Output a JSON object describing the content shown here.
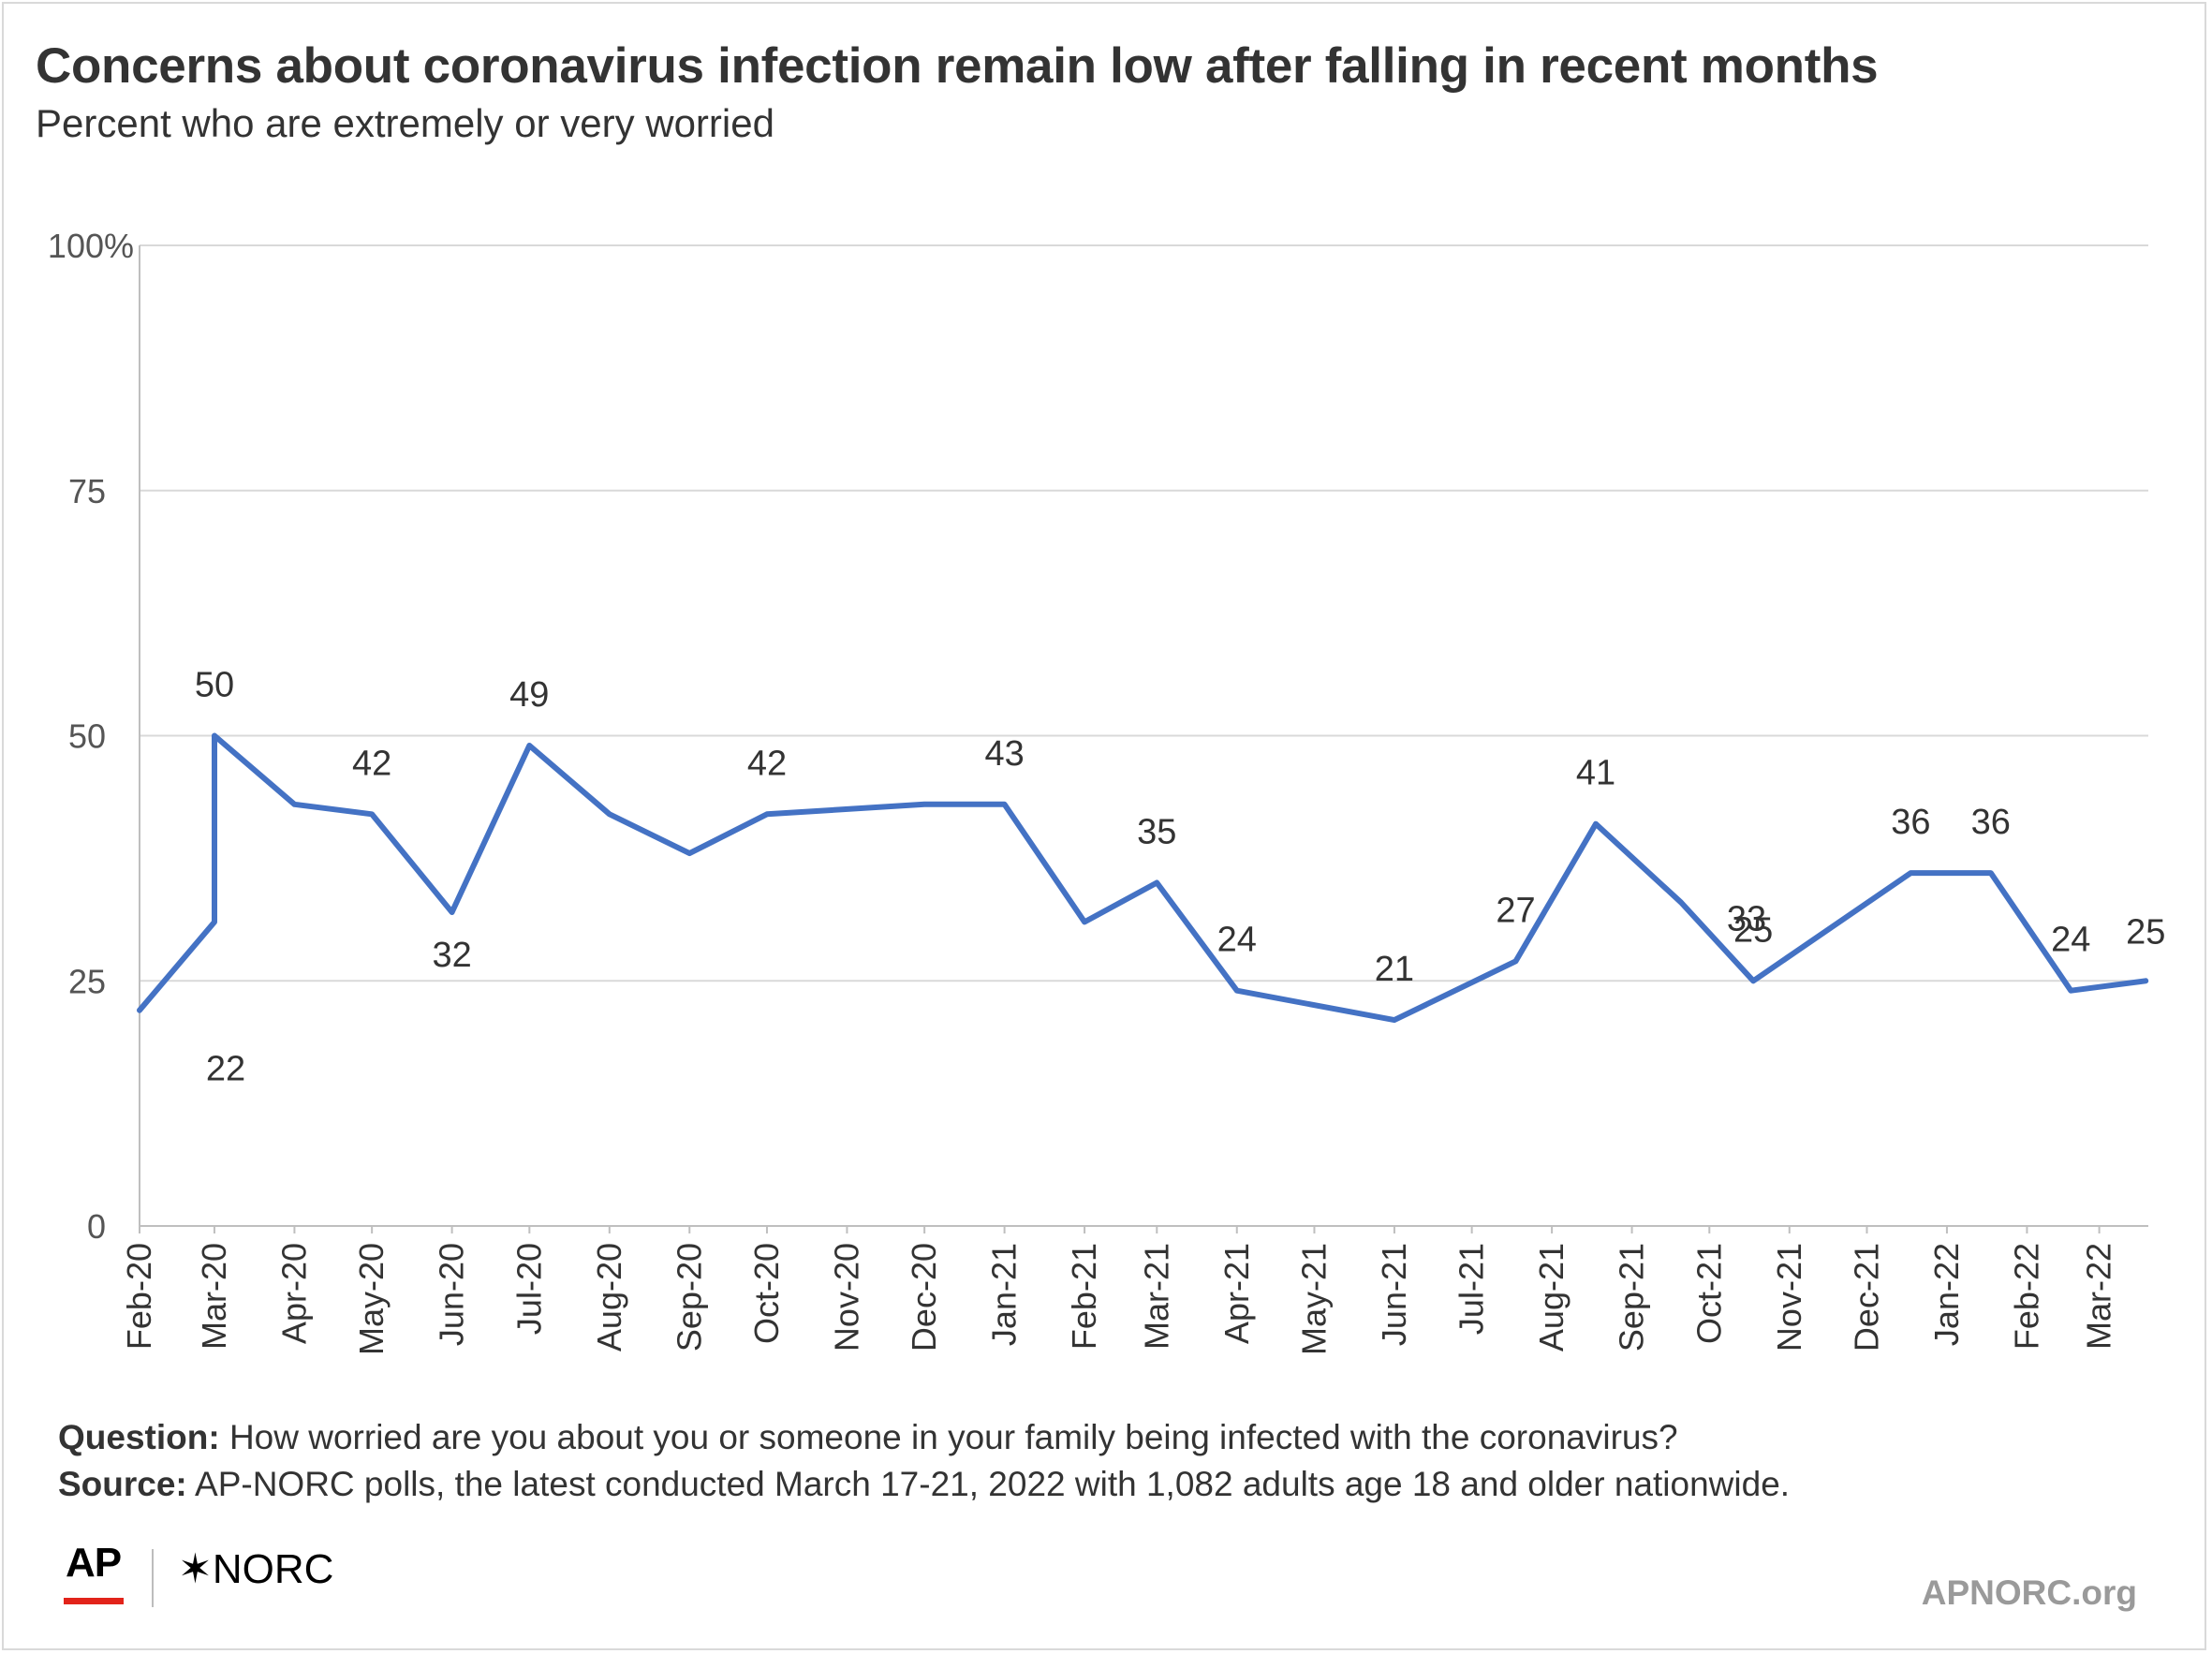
{
  "chart_data": {
    "type": "line",
    "title": "Concerns about coronavirus infection remain low after falling in recent months",
    "subtitle": "Percent who are extremely or very worried",
    "xlabel": "",
    "ylabel": "",
    "ylim": [
      0,
      100
    ],
    "y_ticks": [
      "100%",
      "75",
      "50",
      "25",
      "0"
    ],
    "y_tick_values": [
      100,
      75,
      50,
      25,
      0
    ],
    "x_ticks": [
      "Feb-20",
      "Mar-20",
      "Apr-20",
      "May-20",
      "Jun-20",
      "Jul-20",
      "Aug-20",
      "Sep-20",
      "Oct-20",
      "Nov-20",
      "Dec-20",
      "Jan-21",
      "Feb-21",
      "Mar-21",
      "Apr-21",
      "May-21",
      "Jun-21",
      "Jul-21",
      "Aug-21",
      "Sep-21",
      "Oct-21",
      "Nov-21",
      "Dec-21",
      "Jan-22",
      "Feb-22",
      "Mar-22"
    ],
    "grid": true,
    "line_color": "#4472c4",
    "series": [
      {
        "name": "",
        "points": [
          {
            "x": "2020-02-01",
            "y": 22,
            "label": "22"
          },
          {
            "x": "2020-03-01",
            "y": 31,
            "label": ""
          },
          {
            "x": "2020-03-01",
            "y": 50,
            "label": "50"
          },
          {
            "x": "2020-04-01",
            "y": 43,
            "label": ""
          },
          {
            "x": "2020-05-01",
            "y": 42,
            "label": "42"
          },
          {
            "x": "2020-06-01",
            "y": 32,
            "label": "32"
          },
          {
            "x": "2020-07-01",
            "y": 49,
            "label": "49"
          },
          {
            "x": "2020-08-01",
            "y": 42,
            "label": ""
          },
          {
            "x": "2020-09-01",
            "y": 38,
            "label": ""
          },
          {
            "x": "2020-10-01",
            "y": 42,
            "label": "42"
          },
          {
            "x": "2020-12-01",
            "y": 43,
            "label": ""
          },
          {
            "x": "2021-01-01",
            "y": 43,
            "label": "43"
          },
          {
            "x": "2021-02-01",
            "y": 31,
            "label": ""
          },
          {
            "x": "2021-03-01",
            "y": 35,
            "label": "35"
          },
          {
            "x": "2021-04-01",
            "y": 24,
            "label": "24"
          },
          {
            "x": "2021-06-01",
            "y": 21,
            "label": "21"
          },
          {
            "x": "2021-07-18",
            "y": 27,
            "label": "27"
          },
          {
            "x": "2021-08-18",
            "y": 41,
            "label": "41"
          },
          {
            "x": "2021-09-20",
            "y": 33,
            "label": "33"
          },
          {
            "x": "2021-10-18",
            "y": 25,
            "label": "25"
          },
          {
            "x": "2021-12-18",
            "y": 36,
            "label": "36"
          },
          {
            "x": "2022-01-18",
            "y": 36,
            "label": "36"
          },
          {
            "x": "2022-02-18",
            "y": 24,
            "label": "24"
          },
          {
            "x": "2022-03-19",
            "y": 25,
            "label": "25"
          }
        ]
      }
    ]
  },
  "footer": {
    "question_label": "Question:",
    "question_text": "How worried are you about you or someone in your family being infected with the coronavirus?",
    "source_label": "Source:",
    "source_text": "AP-NORC polls, the latest conducted March 17-21, 2022 with 1,082 adults age 18 and older nationwide.",
    "logo_ap": "AP",
    "logo_norc": "✶NORC",
    "site": "APNORC.org",
    "ap_red": "#e2231a"
  }
}
